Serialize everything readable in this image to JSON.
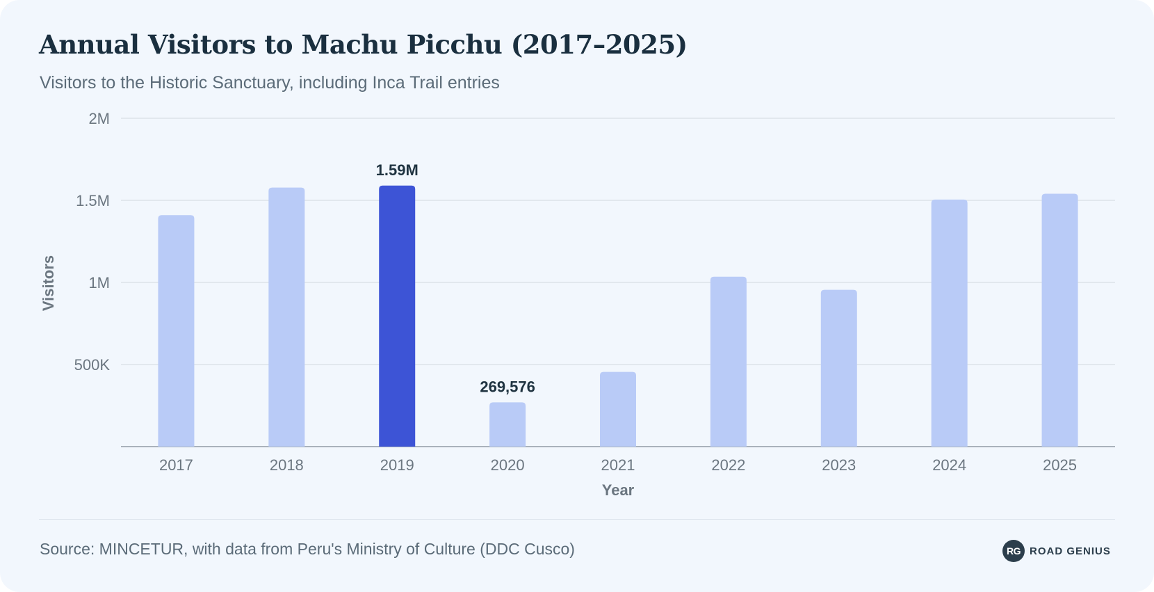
{
  "header": {
    "title": "Annual Visitors to Machu Picchu (2017–2025)",
    "subtitle": "Visitors to the Historic Sanctuary, including Inca Trail entries"
  },
  "chart_data": {
    "type": "bar",
    "title": "Annual Visitors to Machu Picchu (2017–2025)",
    "subtitle": "Visitors to the Historic Sanctuary, including Inca Trail entries",
    "xlabel": "Year",
    "ylabel": "Visitors",
    "categories": [
      "2017",
      "2018",
      "2019",
      "2020",
      "2021",
      "2022",
      "2023",
      "2024",
      "2025"
    ],
    "values": [
      1410000,
      1578000,
      1590000,
      269576,
      455000,
      1035000,
      955000,
      1505000,
      1540000
    ],
    "ylim": [
      0,
      2000000
    ],
    "y_ticks": [
      {
        "value": 500000,
        "label": "500K"
      },
      {
        "value": 1000000,
        "label": "1M"
      },
      {
        "value": 1500000,
        "label": "1.5M"
      },
      {
        "value": 2000000,
        "label": "2M"
      }
    ],
    "data_labels": [
      {
        "category": "2019",
        "text": "1.59M"
      },
      {
        "category": "2020",
        "text": "269,576"
      }
    ],
    "highlight_category": "2019",
    "grid": true,
    "legend": "none",
    "colors": {
      "bar": "#b9cbf7",
      "highlight": "#3d54d6",
      "grid": "#dde3ea",
      "axis": "#a9b2bb"
    }
  },
  "footer": {
    "source": "Source: MINCETUR, with data from Peru's Ministry of Culture (DDC Cusco)",
    "brand_logo": "RG",
    "brand_name": "ROAD GENIUS"
  }
}
